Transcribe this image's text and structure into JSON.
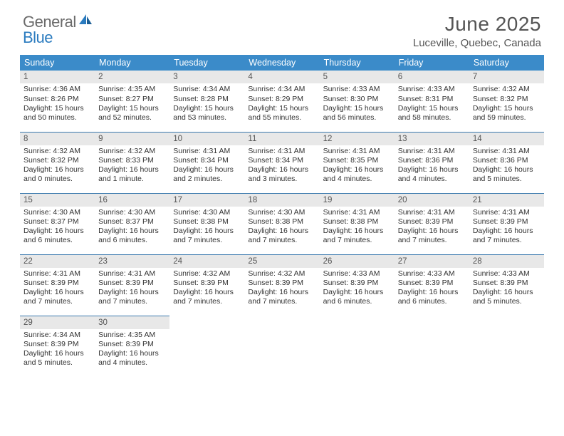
{
  "brand": {
    "part1": "General",
    "part2": "Blue"
  },
  "title": "June 2025",
  "location": "Luceville, Quebec, Canada",
  "colors": {
    "header_bg": "#3b8bc9",
    "header_fg": "#ffffff",
    "row_divider": "#3b7aae",
    "daynum_bg": "#e8e8e8",
    "text": "#333333",
    "brand_gray": "#6a6a6a",
    "brand_blue": "#2b7bbf"
  },
  "weekdays": [
    "Sunday",
    "Monday",
    "Tuesday",
    "Wednesday",
    "Thursday",
    "Friday",
    "Saturday"
  ],
  "weeks": [
    [
      {
        "n": "1",
        "sr": "Sunrise: 4:36 AM",
        "ss": "Sunset: 8:26 PM",
        "dl": "Daylight: 15 hours and 50 minutes."
      },
      {
        "n": "2",
        "sr": "Sunrise: 4:35 AM",
        "ss": "Sunset: 8:27 PM",
        "dl": "Daylight: 15 hours and 52 minutes."
      },
      {
        "n": "3",
        "sr": "Sunrise: 4:34 AM",
        "ss": "Sunset: 8:28 PM",
        "dl": "Daylight: 15 hours and 53 minutes."
      },
      {
        "n": "4",
        "sr": "Sunrise: 4:34 AM",
        "ss": "Sunset: 8:29 PM",
        "dl": "Daylight: 15 hours and 55 minutes."
      },
      {
        "n": "5",
        "sr": "Sunrise: 4:33 AM",
        "ss": "Sunset: 8:30 PM",
        "dl": "Daylight: 15 hours and 56 minutes."
      },
      {
        "n": "6",
        "sr": "Sunrise: 4:33 AM",
        "ss": "Sunset: 8:31 PM",
        "dl": "Daylight: 15 hours and 58 minutes."
      },
      {
        "n": "7",
        "sr": "Sunrise: 4:32 AM",
        "ss": "Sunset: 8:32 PM",
        "dl": "Daylight: 15 hours and 59 minutes."
      }
    ],
    [
      {
        "n": "8",
        "sr": "Sunrise: 4:32 AM",
        "ss": "Sunset: 8:32 PM",
        "dl": "Daylight: 16 hours and 0 minutes."
      },
      {
        "n": "9",
        "sr": "Sunrise: 4:32 AM",
        "ss": "Sunset: 8:33 PM",
        "dl": "Daylight: 16 hours and 1 minute."
      },
      {
        "n": "10",
        "sr": "Sunrise: 4:31 AM",
        "ss": "Sunset: 8:34 PM",
        "dl": "Daylight: 16 hours and 2 minutes."
      },
      {
        "n": "11",
        "sr": "Sunrise: 4:31 AM",
        "ss": "Sunset: 8:34 PM",
        "dl": "Daylight: 16 hours and 3 minutes."
      },
      {
        "n": "12",
        "sr": "Sunrise: 4:31 AM",
        "ss": "Sunset: 8:35 PM",
        "dl": "Daylight: 16 hours and 4 minutes."
      },
      {
        "n": "13",
        "sr": "Sunrise: 4:31 AM",
        "ss": "Sunset: 8:36 PM",
        "dl": "Daylight: 16 hours and 4 minutes."
      },
      {
        "n": "14",
        "sr": "Sunrise: 4:31 AM",
        "ss": "Sunset: 8:36 PM",
        "dl": "Daylight: 16 hours and 5 minutes."
      }
    ],
    [
      {
        "n": "15",
        "sr": "Sunrise: 4:30 AM",
        "ss": "Sunset: 8:37 PM",
        "dl": "Daylight: 16 hours and 6 minutes."
      },
      {
        "n": "16",
        "sr": "Sunrise: 4:30 AM",
        "ss": "Sunset: 8:37 PM",
        "dl": "Daylight: 16 hours and 6 minutes."
      },
      {
        "n": "17",
        "sr": "Sunrise: 4:30 AM",
        "ss": "Sunset: 8:38 PM",
        "dl": "Daylight: 16 hours and 7 minutes."
      },
      {
        "n": "18",
        "sr": "Sunrise: 4:30 AM",
        "ss": "Sunset: 8:38 PM",
        "dl": "Daylight: 16 hours and 7 minutes."
      },
      {
        "n": "19",
        "sr": "Sunrise: 4:31 AM",
        "ss": "Sunset: 8:38 PM",
        "dl": "Daylight: 16 hours and 7 minutes."
      },
      {
        "n": "20",
        "sr": "Sunrise: 4:31 AM",
        "ss": "Sunset: 8:39 PM",
        "dl": "Daylight: 16 hours and 7 minutes."
      },
      {
        "n": "21",
        "sr": "Sunrise: 4:31 AM",
        "ss": "Sunset: 8:39 PM",
        "dl": "Daylight: 16 hours and 7 minutes."
      }
    ],
    [
      {
        "n": "22",
        "sr": "Sunrise: 4:31 AM",
        "ss": "Sunset: 8:39 PM",
        "dl": "Daylight: 16 hours and 7 minutes."
      },
      {
        "n": "23",
        "sr": "Sunrise: 4:31 AM",
        "ss": "Sunset: 8:39 PM",
        "dl": "Daylight: 16 hours and 7 minutes."
      },
      {
        "n": "24",
        "sr": "Sunrise: 4:32 AM",
        "ss": "Sunset: 8:39 PM",
        "dl": "Daylight: 16 hours and 7 minutes."
      },
      {
        "n": "25",
        "sr": "Sunrise: 4:32 AM",
        "ss": "Sunset: 8:39 PM",
        "dl": "Daylight: 16 hours and 7 minutes."
      },
      {
        "n": "26",
        "sr": "Sunrise: 4:33 AM",
        "ss": "Sunset: 8:39 PM",
        "dl": "Daylight: 16 hours and 6 minutes."
      },
      {
        "n": "27",
        "sr": "Sunrise: 4:33 AM",
        "ss": "Sunset: 8:39 PM",
        "dl": "Daylight: 16 hours and 6 minutes."
      },
      {
        "n": "28",
        "sr": "Sunrise: 4:33 AM",
        "ss": "Sunset: 8:39 PM",
        "dl": "Daylight: 16 hours and 5 minutes."
      }
    ],
    [
      {
        "n": "29",
        "sr": "Sunrise: 4:34 AM",
        "ss": "Sunset: 8:39 PM",
        "dl": "Daylight: 16 hours and 5 minutes."
      },
      {
        "n": "30",
        "sr": "Sunrise: 4:35 AM",
        "ss": "Sunset: 8:39 PM",
        "dl": "Daylight: 16 hours and 4 minutes."
      },
      {
        "empty": true
      },
      {
        "empty": true
      },
      {
        "empty": true
      },
      {
        "empty": true
      },
      {
        "empty": true
      }
    ]
  ]
}
